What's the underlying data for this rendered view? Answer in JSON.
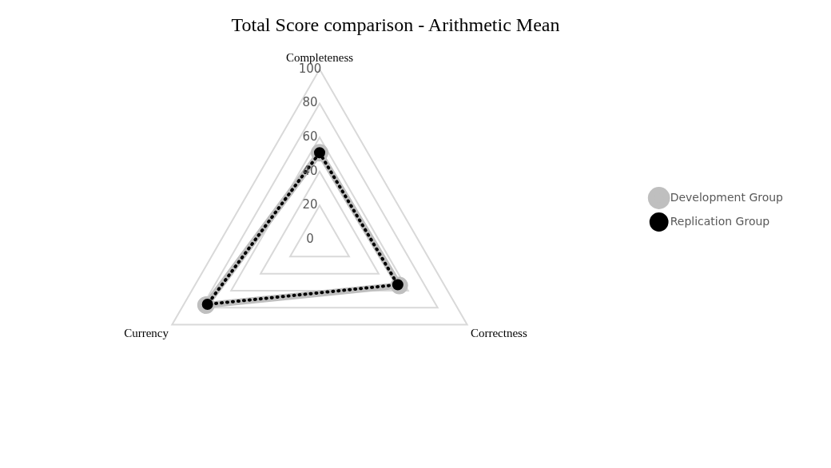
{
  "chart_data": {
    "type": "radar",
    "title": "Total Score comparison - Arithmetic Mean",
    "categories": [
      "Completeness",
      "Correctness",
      "Currency"
    ],
    "series": [
      {
        "name": "Development Group",
        "color": "#bfbfbf",
        "values": [
          51,
          54,
          77
        ],
        "line_style": "solid"
      },
      {
        "name": "Replication Group",
        "color": "#000000",
        "values": [
          51,
          53,
          76
        ],
        "line_style": "dotted"
      }
    ],
    "ylim": [
      0,
      100
    ],
    "yticks": [
      0,
      20,
      40,
      60,
      80,
      100
    ],
    "grid": true,
    "legend": "right",
    "marker": "circle"
  }
}
